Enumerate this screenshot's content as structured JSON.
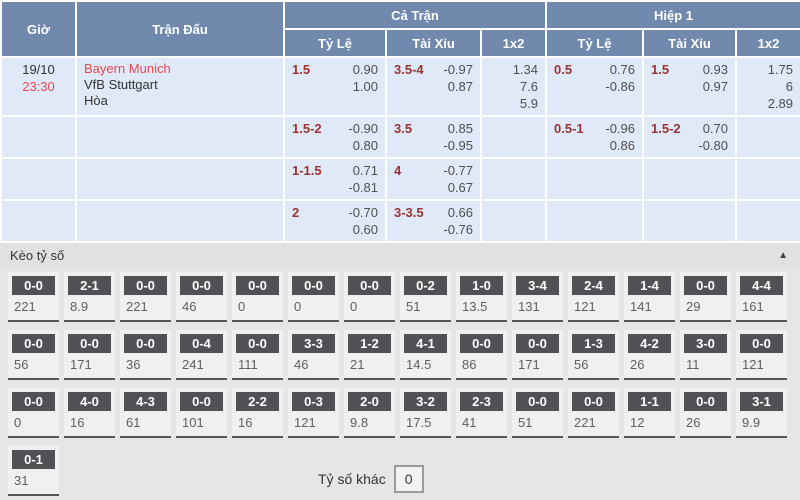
{
  "colors": {
    "header_bg": "#7089ad",
    "row_bg": "#dfe9f8",
    "handicap_line_red": "#9c3232",
    "team_highlight_red": "#e8494e",
    "score_box_bg": "#515155",
    "panel_bg": "#e6e6e6",
    "bottom_bar_navy": "#1d2c4e"
  },
  "odds_table": {
    "headers": {
      "time": "Giờ",
      "match": "Trận Đấu",
      "groups": [
        {
          "label": "Cả Trận"
        },
        {
          "label": "Hiệp 1"
        }
      ],
      "sub": {
        "handicap": "Tỷ Lệ",
        "over_under": "Tài Xỉu",
        "one_x_two": "1x2"
      }
    },
    "match": {
      "date": "19/10",
      "time": "23:30",
      "home": "Bayern Munich",
      "away": "VfB Stuttgart",
      "draw_label": "Hòa"
    },
    "rows": [
      {
        "ft": {
          "hdp": {
            "line": "1.5",
            "odds": [
              "0.90",
              "1.00"
            ]
          },
          "ou": {
            "line": "3.5-4",
            "odds": [
              "-0.97",
              "0.87"
            ]
          },
          "x12": [
            "1.34",
            "7.6",
            "5.9"
          ]
        },
        "h1": {
          "hdp": {
            "line": "0.5",
            "odds": [
              "0.76",
              "-0.86"
            ]
          },
          "ou": {
            "line": "1.5",
            "odds": [
              "0.93",
              "0.97"
            ]
          },
          "x12": [
            "1.75",
            "6",
            "2.89"
          ]
        }
      },
      {
        "ft": {
          "hdp": {
            "line": "1.5-2",
            "odds": [
              "-0.90",
              "0.80"
            ]
          },
          "ou": {
            "line": "3.5",
            "odds": [
              "0.85",
              "-0.95"
            ]
          },
          "x12": []
        },
        "h1": {
          "hdp": {
            "line": "0.5-1",
            "odds": [
              "-0.96",
              "0.86"
            ]
          },
          "ou": {
            "line": "1.5-2",
            "odds": [
              "0.70",
              "-0.80"
            ]
          },
          "x12": []
        }
      },
      {
        "ft": {
          "hdp": {
            "line": "1-1.5",
            "odds": [
              "0.71",
              "-0.81"
            ]
          },
          "ou": {
            "line": "4",
            "odds": [
              "-0.77",
              "0.67"
            ]
          },
          "x12": []
        },
        "h1": {
          "hdp": null,
          "ou": null,
          "x12": []
        }
      },
      {
        "ft": {
          "hdp": {
            "line": "2",
            "odds": [
              "-0.70",
              "0.60"
            ]
          },
          "ou": {
            "line": "3-3.5",
            "odds": [
              "0.66",
              "-0.76"
            ]
          },
          "x12": []
        },
        "h1": {
          "hdp": null,
          "ou": null,
          "x12": []
        }
      }
    ]
  },
  "score_panel": {
    "title": "Kèo tỷ số",
    "collapse_icon": "▲",
    "rows": [
      [
        {
          "score": "0-0",
          "odds": "221"
        },
        {
          "score": "2-1",
          "odds": "8.9"
        },
        {
          "score": "0-0",
          "odds": "221"
        },
        {
          "score": "0-0",
          "odds": "46"
        },
        {
          "score": "0-0",
          "odds": "0"
        },
        {
          "score": "0-0",
          "odds": "0"
        },
        {
          "score": "0-0",
          "odds": "0"
        },
        {
          "score": "0-2",
          "odds": "51"
        },
        {
          "score": "1-0",
          "odds": "13.5"
        },
        {
          "score": "3-4",
          "odds": "131"
        },
        {
          "score": "2-4",
          "odds": "121"
        },
        {
          "score": "1-4",
          "odds": "141"
        },
        {
          "score": "0-0",
          "odds": "29"
        },
        {
          "score": "4-4",
          "odds": "161"
        }
      ],
      [
        {
          "score": "0-0",
          "odds": "56"
        },
        {
          "score": "0-0",
          "odds": "171"
        },
        {
          "score": "0-0",
          "odds": "36"
        },
        {
          "score": "0-4",
          "odds": "241"
        },
        {
          "score": "0-0",
          "odds": "111"
        },
        {
          "score": "3-3",
          "odds": "46"
        },
        {
          "score": "1-2",
          "odds": "21"
        },
        {
          "score": "4-1",
          "odds": "14.5"
        },
        {
          "score": "0-0",
          "odds": "86"
        },
        {
          "score": "0-0",
          "odds": "171"
        },
        {
          "score": "1-3",
          "odds": "56"
        },
        {
          "score": "4-2",
          "odds": "26"
        },
        {
          "score": "3-0",
          "odds": "11"
        },
        {
          "score": "0-0",
          "odds": "121"
        }
      ],
      [
        {
          "score": "0-0",
          "odds": "0"
        },
        {
          "score": "4-0",
          "odds": "16"
        },
        {
          "score": "4-3",
          "odds": "61"
        },
        {
          "score": "0-0",
          "odds": "101"
        },
        {
          "score": "2-2",
          "odds": "16"
        },
        {
          "score": "0-3",
          "odds": "121"
        },
        {
          "score": "2-0",
          "odds": "9.8"
        },
        {
          "score": "3-2",
          "odds": "17.5"
        },
        {
          "score": "2-3",
          "odds": "41"
        },
        {
          "score": "0-0",
          "odds": "51"
        },
        {
          "score": "0-0",
          "odds": "221"
        },
        {
          "score": "1-1",
          "odds": "12"
        },
        {
          "score": "0-0",
          "odds": "26"
        },
        {
          "score": "3-1",
          "odds": "9.9"
        }
      ],
      [
        {
          "score": "0-1",
          "odds": "31"
        }
      ]
    ],
    "other_score_label": "Tỷ số khác",
    "other_score_value": "0"
  }
}
